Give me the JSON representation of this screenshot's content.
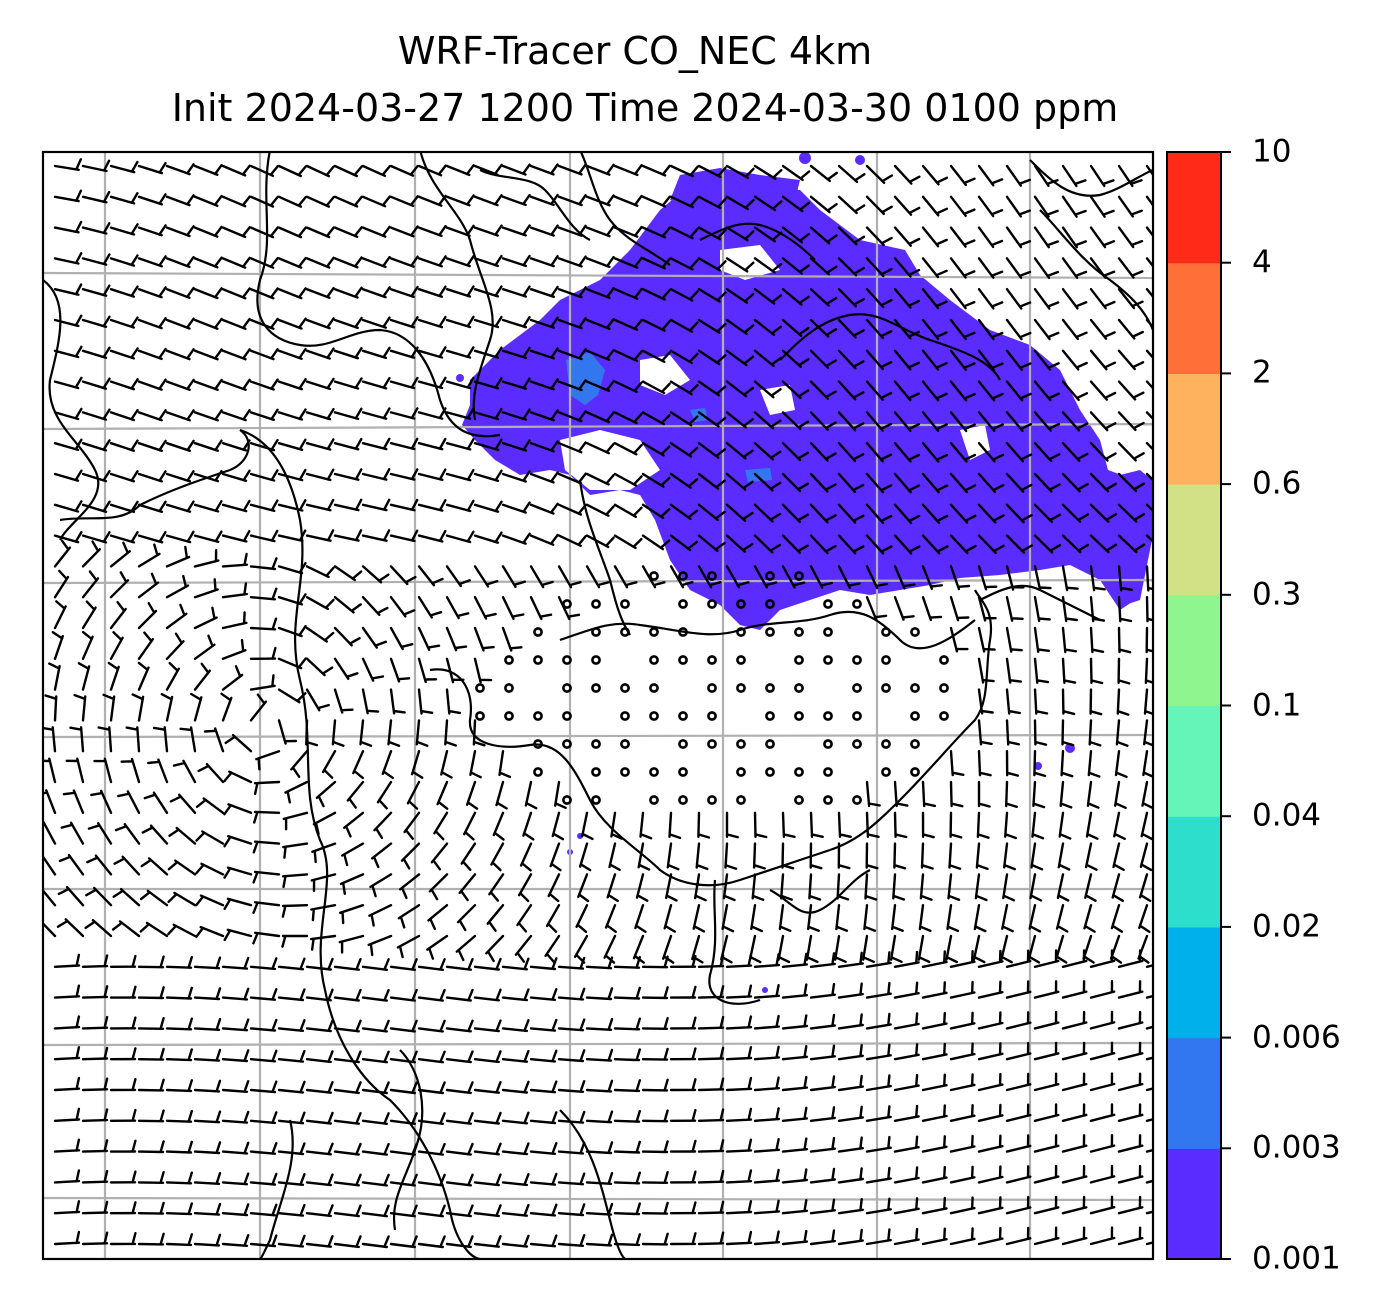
{
  "title": {
    "line1": "WRF-Tracer CO_NEC 4km",
    "line2": "Init 2024-03-27 1200 Time 2024-03-30 0100 ppm"
  },
  "colorbar": {
    "ticks": [
      "0.001",
      "0.003",
      "0.006",
      "0.02",
      "0.04",
      "0.1",
      "0.3",
      "0.6",
      "2",
      "4",
      "10"
    ],
    "colors": [
      "#5b2cff",
      "#3377f0",
      "#00b0ea",
      "#2ddecd",
      "#66f5b8",
      "#8ef58f",
      "#d2e186",
      "#ffb25e",
      "#ff7038",
      "#ff2a18"
    ]
  },
  "layers": {
    "tracer_fill_color": "#5b2cff",
    "tracer_high_color": "#3377f0",
    "wind_barbs": "black",
    "calm_circles": "black",
    "coastlines": "black",
    "gridlines": "#b0b0b0"
  }
}
